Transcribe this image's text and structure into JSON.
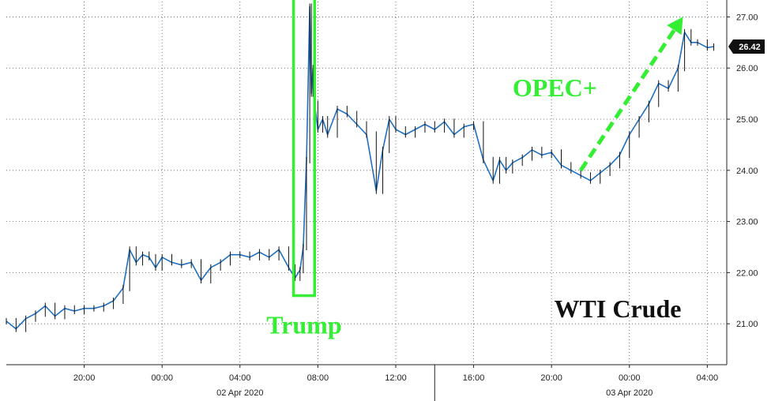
{
  "chart_data": {
    "type": "line",
    "title": "WTI Crude",
    "xlabel": "",
    "ylabel": "",
    "ylim": [
      20.2,
      27.3
    ],
    "xlim": [
      "2020-04-01T16:00",
      "2020-04-03T05:00"
    ],
    "grid": true,
    "legend": "none",
    "y_axis_side": "right",
    "colors": {
      "line": "#1f6fc1",
      "candle": "#111111",
      "annotation": "#33ee33",
      "grid": "#555555"
    },
    "y_ticks": [
      "21.00",
      "22.00",
      "23.00",
      "24.00",
      "25.00",
      "26.00",
      "27.00"
    ],
    "x_ticks": [
      {
        "t": "2020-04-01T20:00",
        "label": "20:00"
      },
      {
        "t": "2020-04-02T00:00",
        "label": "00:00"
      },
      {
        "t": "2020-04-02T04:00",
        "label": "04:00"
      },
      {
        "t": "2020-04-02T08:00",
        "label": "08:00"
      },
      {
        "t": "2020-04-02T12:00",
        "label": "12:00"
      },
      {
        "t": "2020-04-02T16:00",
        "label": "16:00"
      },
      {
        "t": "2020-04-02T20:00",
        "label": "20:00"
      },
      {
        "t": "2020-04-03T00:00",
        "label": "00:00"
      },
      {
        "t": "2020-04-03T04:00",
        "label": "04:00"
      }
    ],
    "date_labels": [
      {
        "t": "2020-04-02T04:00",
        "label": "02 Apr 2020"
      },
      {
        "t": "2020-04-03T00:00",
        "label": "03 Apr 2020"
      }
    ],
    "day_separator": "2020-04-02T14:00",
    "last_value": "26.42",
    "series": [
      {
        "x": [
          "2020-04-01T16:00",
          "2020-04-01T16:30",
          "2020-04-01T17:00",
          "2020-04-01T17:30",
          "2020-04-01T18:00",
          "2020-04-01T18:30",
          "2020-04-01T19:00",
          "2020-04-01T19:30",
          "2020-04-01T20:00",
          "2020-04-01T20:30",
          "2020-04-01T21:00",
          "2020-04-01T21:30",
          "2020-04-01T22:00",
          "2020-04-01T22:20",
          "2020-04-01T22:40",
          "2020-04-01T23:00",
          "2020-04-01T23:20",
          "2020-04-01T23:40",
          "2020-04-02T00:00",
          "2020-04-02T00:30",
          "2020-04-02T01:00",
          "2020-04-02T01:30",
          "2020-04-02T02:00",
          "2020-04-02T02:30",
          "2020-04-02T03:00",
          "2020-04-02T03:30",
          "2020-04-02T04:00",
          "2020-04-02T04:30",
          "2020-04-02T05:00",
          "2020-04-02T05:30",
          "2020-04-02T06:00",
          "2020-04-02T06:30",
          "2020-04-02T06:50",
          "2020-04-02T07:05",
          "2020-04-02T07:15",
          "2020-04-02T07:25",
          "2020-04-02T07:35",
          "2020-04-02T07:40",
          "2020-04-02T07:45",
          "2020-04-02T07:50",
          "2020-04-02T08:00",
          "2020-04-02T08:15",
          "2020-04-02T08:30",
          "2020-04-02T09:00",
          "2020-04-02T09:30",
          "2020-04-02T10:00",
          "2020-04-02T10:30",
          "2020-04-02T11:00",
          "2020-04-02T11:20",
          "2020-04-02T11:40",
          "2020-04-02T12:00",
          "2020-04-02T12:30",
          "2020-04-02T13:00",
          "2020-04-02T13:30",
          "2020-04-02T14:00",
          "2020-04-02T14:30",
          "2020-04-02T15:00",
          "2020-04-02T15:30",
          "2020-04-02T16:00",
          "2020-04-02T16:30",
          "2020-04-02T17:00",
          "2020-04-02T17:20",
          "2020-04-02T17:40",
          "2020-04-02T18:00",
          "2020-04-02T18:30",
          "2020-04-02T19:00",
          "2020-04-02T19:30",
          "2020-04-02T20:00",
          "2020-04-02T20:30",
          "2020-04-02T21:00",
          "2020-04-02T21:30",
          "2020-04-02T22:00",
          "2020-04-02T22:30",
          "2020-04-02T23:00",
          "2020-04-02T23:30",
          "2020-04-03T00:00",
          "2020-04-03T00:30",
          "2020-04-03T01:00",
          "2020-04-03T01:30",
          "2020-04-03T02:00",
          "2020-04-03T02:30",
          "2020-04-03T02:50",
          "2020-04-03T03:10",
          "2020-04-03T03:30",
          "2020-04-03T04:00",
          "2020-04-03T04:20"
        ],
        "y": [
          21.05,
          20.9,
          21.1,
          21.2,
          21.35,
          21.15,
          21.3,
          21.25,
          21.3,
          21.3,
          21.35,
          21.45,
          21.7,
          22.45,
          22.2,
          22.35,
          22.3,
          22.1,
          22.3,
          22.2,
          22.15,
          22.2,
          21.85,
          22.1,
          22.2,
          22.35,
          22.35,
          22.3,
          22.4,
          22.3,
          22.45,
          22.1,
          21.9,
          22.05,
          22.5,
          24.2,
          27.2,
          25.5,
          26.0,
          25.3,
          24.8,
          25.0,
          24.7,
          25.2,
          25.1,
          24.9,
          24.7,
          23.6,
          24.4,
          25.0,
          24.8,
          24.7,
          24.8,
          24.9,
          24.8,
          24.95,
          24.7,
          24.85,
          24.9,
          24.2,
          23.8,
          24.2,
          24.0,
          24.15,
          24.25,
          24.4,
          24.3,
          24.35,
          24.1,
          24.0,
          23.9,
          23.8,
          23.95,
          24.1,
          24.3,
          24.7,
          25.0,
          25.3,
          25.7,
          25.6,
          26.0,
          26.7,
          26.5,
          26.5,
          26.4,
          26.42
        ]
      }
    ],
    "annotations": [
      {
        "label": "Trump",
        "box": {
          "t0": "2020-04-02T06:45",
          "t1": "2020-04-02T07:50",
          "y0": 21.55,
          "y1": 27.55
        }
      },
      {
        "label": "OPEC+",
        "arrow": {
          "t0": "2020-04-02T21:30",
          "y0": 24.0,
          "t1": "2020-04-03T02:45",
          "y1": 27.0
        }
      }
    ]
  }
}
